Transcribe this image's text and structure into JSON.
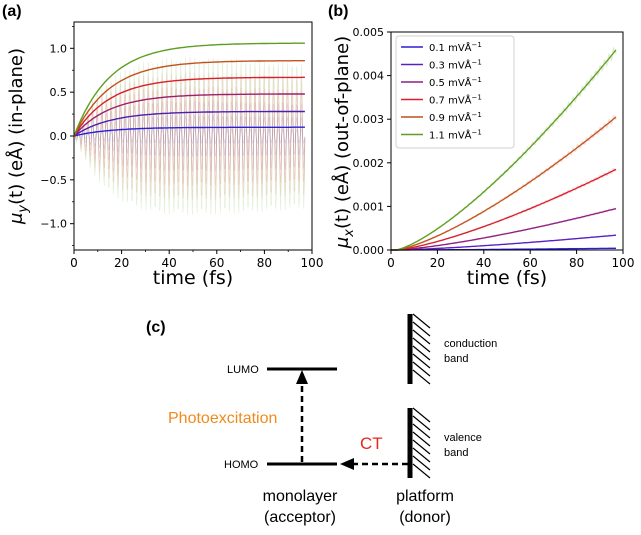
{
  "panels": {
    "a": "(a)",
    "b": "(b)",
    "c": "(c)"
  },
  "chart_data": [
    {
      "panel": "(a)",
      "type": "line",
      "ylabel_main": "μ",
      "ylabel_sub": "y",
      "ylabel_rest": "(t) (eÅ) (in-plane)",
      "xlabel": "time (fs)",
      "xlim": [
        0,
        100
      ],
      "ylim": [
        -1.3,
        1.3
      ],
      "xticks": [
        "0",
        "20",
        "40",
        "60",
        "80",
        "100"
      ],
      "yticks": [
        "−1.0",
        "−0.5",
        "0.0",
        "0.5",
        "1.0"
      ],
      "envelope_tau_fs": 15,
      "series": [
        {
          "amplitude": 0.1,
          "color": "#2b1fd6"
        },
        {
          "amplitude": 0.28,
          "color": "#4a1fb0"
        },
        {
          "amplitude": 0.48,
          "color": "#9e1e6e"
        },
        {
          "amplitude": 0.67,
          "color": "#d81f2a"
        },
        {
          "amplitude": 0.86,
          "color": "#c2521c"
        },
        {
          "amplitude": 1.06,
          "color": "#5d9e1f"
        }
      ]
    },
    {
      "panel": "(b)",
      "type": "line",
      "ylabel_main": "μ",
      "ylabel_sub": "x",
      "ylabel_rest": "(t) (eÅ) (out-of-plane)",
      "xlabel": "time (fs)",
      "xlim": [
        0,
        100
      ],
      "ylim": [
        0,
        0.005
      ],
      "xticks": [
        "0",
        "20",
        "40",
        "60",
        "80",
        "100"
      ],
      "yticks": [
        "0.000",
        "0.001",
        "0.002",
        "0.003",
        "0.004",
        "0.005"
      ],
      "legend_position": "top-left",
      "series": [
        {
          "name": "0.1 mVÅ",
          "value_at_97fs": 4e-05,
          "color": "#2b1fd6"
        },
        {
          "name": "0.3 mVÅ",
          "value_at_97fs": 0.00034,
          "color": "#5a1fc2"
        },
        {
          "name": "0.5 mVÅ",
          "value_at_97fs": 0.00095,
          "color": "#8e1f80"
        },
        {
          "name": "0.7 mVÅ",
          "value_at_97fs": 0.00185,
          "color": "#d81f2a"
        },
        {
          "name": "0.9 mVÅ",
          "value_at_97fs": 0.00305,
          "color": "#c2521c"
        },
        {
          "name": "1.1 mVÅ",
          "value_at_97fs": 0.00459,
          "color": "#5d9e1f"
        }
      ],
      "legend_superscript": "−1"
    }
  ],
  "diagram": {
    "lumo": "LUMO",
    "homo": "HOMO",
    "photoexcitation": "Photoexcitation",
    "ct": "CT",
    "conduction_1": "conduction",
    "conduction_2": "band",
    "valence_1": "valence",
    "valence_2": "band",
    "monolayer": "monolayer",
    "acceptor": "(acceptor)",
    "platform": "platform",
    "donor": "(donor)",
    "photo_color": "#f08a1c",
    "ct_color": "#e8271f"
  }
}
